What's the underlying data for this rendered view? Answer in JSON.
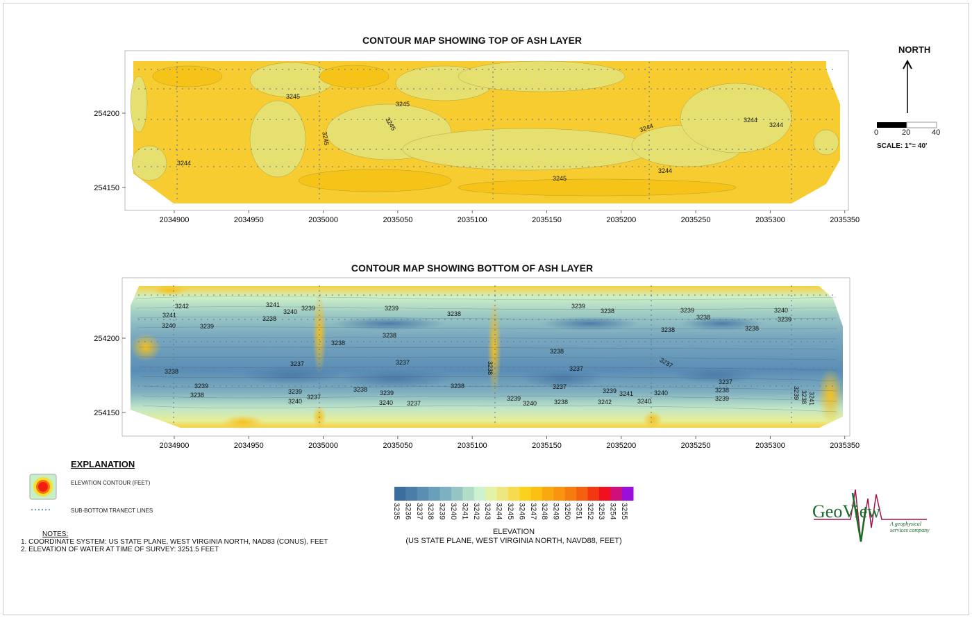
{
  "top_map": {
    "title": "CONTOUR MAP SHOWING TOP OF ASH LAYER",
    "x_ticks": [
      "2034900",
      "2034950",
      "2035000",
      "2035050",
      "2035100",
      "2035150",
      "2035200",
      "2035250",
      "2035300",
      "2035350"
    ],
    "y_ticks": [
      "254200",
      "254150"
    ],
    "contour_labels": [
      "3245",
      "3245",
      "3245",
      "3245",
      "3244",
      "3245",
      "3244",
      "3244",
      "3244",
      "3244"
    ]
  },
  "bottom_map": {
    "title": "CONTOUR MAP SHOWING BOTTOM OF ASH LAYER",
    "x_ticks": [
      "2034900",
      "2034950",
      "2035000",
      "2035050",
      "2035100",
      "2035150",
      "2035200",
      "2035250",
      "2035300",
      "2035350"
    ],
    "y_ticks": [
      "254200",
      "254150"
    ],
    "contour_labels": [
      "3242",
      "3241",
      "3240",
      "3239",
      "3241",
      "3240",
      "3239",
      "3238",
      "3239",
      "3238",
      "3239",
      "3238",
      "3239",
      "3238",
      "3240",
      "3239",
      "3238",
      "3238",
      "3238",
      "3238",
      "3238",
      "3237",
      "3237",
      "3237",
      "3238",
      "3237",
      "3237",
      "3239",
      "3238",
      "3239",
      "3238",
      "3239",
      "3240",
      "3237",
      "3238",
      "3239",
      "3240",
      "3237",
      "3238",
      "3239",
      "3240",
      "3238",
      "3239",
      "3241",
      "3242",
      "3240",
      "3237",
      "3238",
      "3239",
      "3238",
      "3240",
      "3241"
    ]
  },
  "north_arrow": {
    "label": "NORTH"
  },
  "scale_bar": {
    "ticks": [
      "0",
      "20",
      "40"
    ],
    "label": "SCALE: 1\"= 40'"
  },
  "explanation": {
    "title": "EXPLANATION",
    "items": [
      {
        "icon": "contour-swatch-icon",
        "label": "ELEVATION CONTOUR (FEET)"
      },
      {
        "icon": "dotted-line-icon",
        "label": "SUB-BOTTOM TRANECT LINES"
      }
    ]
  },
  "notes": {
    "title": "NOTES:",
    "lines": [
      "1. COORDINATE SYSTEM: US STATE PLANE, WEST VIRGINIA NORTH, NAD83 (CONUS), FEET",
      "2. ELEVATION OF WATER AT TIME OF SURVEY: 3251.5 FEET"
    ]
  },
  "colorbar": {
    "ticks": [
      "3235",
      "3236",
      "3237",
      "3238",
      "3239",
      "3240",
      "3241",
      "3242",
      "3243",
      "3244",
      "3245",
      "3246",
      "3247",
      "3248",
      "3249",
      "3250",
      "3251",
      "3252",
      "3253",
      "3254",
      "3255"
    ],
    "colors": [
      "#3b6e9e",
      "#4a7ea8",
      "#5a8fb3",
      "#6a9fbc",
      "#7db0c0",
      "#95c4c4",
      "#b0dcc8",
      "#ccf2d0",
      "#e4f2a8",
      "#eee680",
      "#f6da50",
      "#fad21e",
      "#fcc014",
      "#faa810",
      "#f89410",
      "#f67c10",
      "#f46010",
      "#f23810",
      "#f01020",
      "#d0107a",
      "#9a10d8"
    ],
    "title": "ELEVATION",
    "subtitle": "(US STATE PLANE, WEST VIRGINIA NORTH, NAVD88, FEET)"
  },
  "logo": {
    "text": "GeoView",
    "tagline": "A geophysical services company",
    "colors": {
      "green": "#1a6a2a",
      "magenta": "#a0104a"
    }
  }
}
